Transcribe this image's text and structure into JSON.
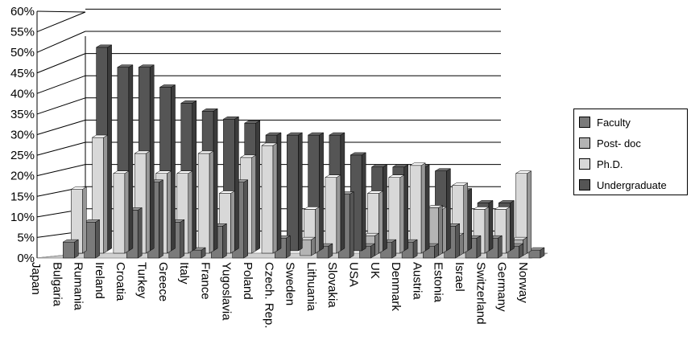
{
  "chart_data": {
    "type": "bar",
    "categories": [
      "Japan",
      "Bulgaria",
      "Rumania",
      "Ireland",
      "Croatia",
      "Turkey",
      "Greece",
      "Italy",
      "France",
      "Yugoslavia",
      "Poland",
      "Czech. Rep.",
      "Sweden",
      "Lithuania",
      "Slovakia",
      "USA",
      "UK",
      "Denmark",
      "Austria",
      "Estonia",
      "Israel",
      "Switzerland",
      "Germany",
      "Norway"
    ],
    "series": [
      {
        "name": "Faculty",
        "values": [
          0,
          4,
          9,
          0,
          12,
          19,
          9,
          2,
          8,
          19,
          0,
          5,
          0,
          3,
          16,
          3,
          4,
          4,
          3,
          8,
          5,
          5,
          3,
          2
        ]
      },
      {
        "name": "Post- doc",
        "values": [
          0,
          0,
          0,
          0,
          0,
          0,
          0,
          0,
          0,
          0,
          0,
          0,
          4,
          0,
          0,
          5,
          0,
          0,
          12,
          5,
          0,
          0,
          4,
          0
        ]
      },
      {
        "name": "Ph.D.",
        "values": [
          0,
          16,
          29,
          20,
          25,
          20,
          20,
          25,
          15,
          24,
          27,
          0,
          11,
          19,
          0,
          15,
          19,
          22,
          11,
          17,
          11,
          11,
          20,
          0
        ]
      },
      {
        "name": "Undergraduate",
        "values": [
          0,
          0,
          51,
          46,
          46,
          41,
          37,
          35,
          33,
          32,
          29,
          29,
          29,
          29,
          24,
          21,
          21,
          21,
          20,
          15,
          12,
          12,
          0,
          0
        ]
      }
    ],
    "yticks": [
      "0%",
      "5%",
      "10%",
      "15%",
      "20%",
      "25%",
      "30%",
      "35%",
      "40%",
      "45%",
      "50%",
      "55%",
      "60%"
    ],
    "ylim": [
      0,
      60
    ],
    "legend": "right",
    "grid": true,
    "colors": {
      "Faculty": "#7a7a7a",
      "Post- doc": "#b4b4b4",
      "Ph.D.": "#d8d8d8",
      "Undergraduate": "#555555"
    }
  }
}
